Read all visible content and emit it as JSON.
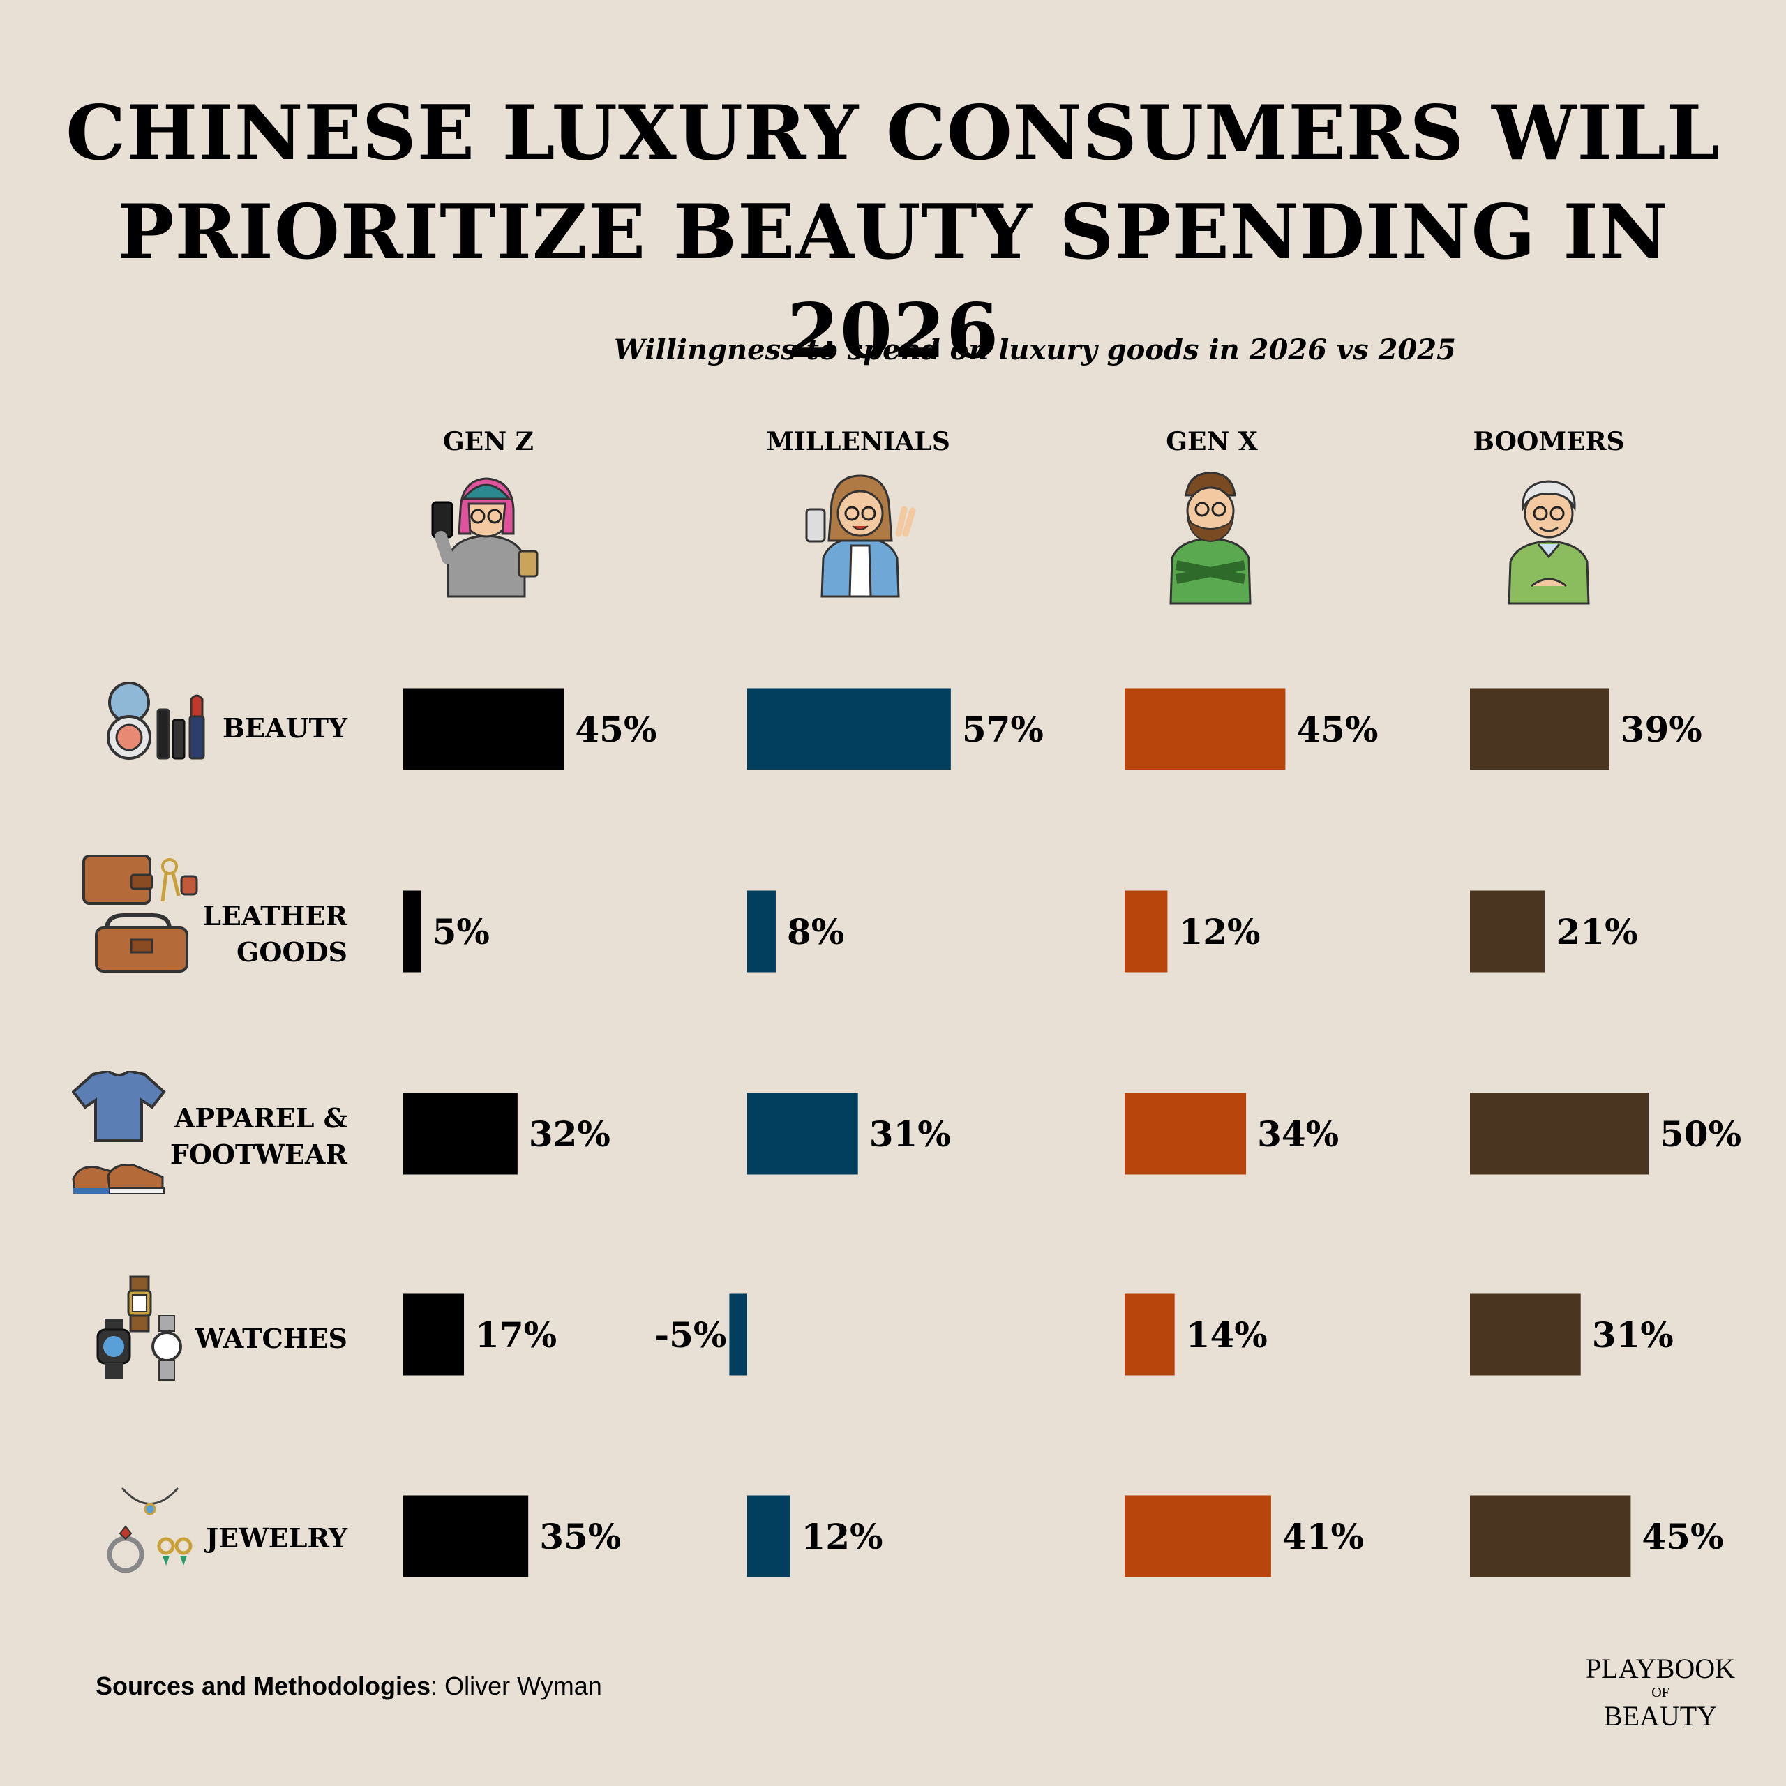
{
  "title": {
    "line1": "CHINESE LUXURY CONSUMERS WILL",
    "line2": "PRIORITIZE BEAUTY SPENDING IN 2026"
  },
  "subtitle": "Willingness to spend on luxury goods in 2026 vs 2025",
  "generations": [
    {
      "label": "GEN Z",
      "icon": "gen-z-avatar-icon"
    },
    {
      "label": "MILLENIALS",
      "icon": "millennial-avatar-icon"
    },
    {
      "label": "GEN X",
      "icon": "gen-x-avatar-icon"
    },
    {
      "label": "BOOMERS",
      "icon": "boomer-avatar-icon"
    }
  ],
  "categories": [
    {
      "line1": "BEAUTY",
      "line2": "",
      "icon": "makeup-icon"
    },
    {
      "line1": "LEATHER",
      "line2": "GOODS",
      "icon": "wallet-bag-icon"
    },
    {
      "line1": "APPAREL &",
      "line2": "FOOTWEAR",
      "icon": "tshirt-sneakers-icon"
    },
    {
      "line1": "WATCHES",
      "line2": "",
      "icon": "watches-icon"
    },
    {
      "line1": "JEWELRY",
      "line2": "",
      "icon": "jewelry-icon"
    }
  ],
  "chart_data": {
    "type": "bar",
    "orientation": "horizontal",
    "categories": [
      "BEAUTY",
      "LEATHER GOODS",
      "APPAREL & FOOTWEAR",
      "WATCHES",
      "JEWELRY"
    ],
    "series": [
      {
        "name": "GEN Z",
        "color": "#000000",
        "values": [
          45,
          5,
          32,
          17,
          35
        ],
        "labels": [
          "45%",
          "5%",
          "32%",
          "17%",
          "35%"
        ]
      },
      {
        "name": "MILLENIALS",
        "color": "#023f5f",
        "values": [
          57,
          8,
          31,
          -5,
          12
        ],
        "labels": [
          "57%",
          "8%",
          "31%",
          "-5%",
          "12%"
        ]
      },
      {
        "name": "GEN X",
        "color": "#b8450b",
        "values": [
          45,
          12,
          34,
          14,
          41
        ],
        "labels": [
          "45%",
          "12%",
          "34%",
          "14%",
          "41%"
        ]
      },
      {
        "name": "BOOMERS",
        "color": "#4a3620",
        "values": [
          39,
          21,
          50,
          31,
          45
        ],
        "labels": [
          "39%",
          "21%",
          "50%",
          "31%",
          "45%"
        ]
      }
    ],
    "unit": "%",
    "grid": false,
    "legend": "column headers (top)"
  },
  "source": {
    "label": "Sources and Methodologies",
    "text": ": Oliver Wyman"
  },
  "brand": {
    "line1": "PLAYBOOK",
    "line2": "OF",
    "line3": "BEAUTY"
  }
}
